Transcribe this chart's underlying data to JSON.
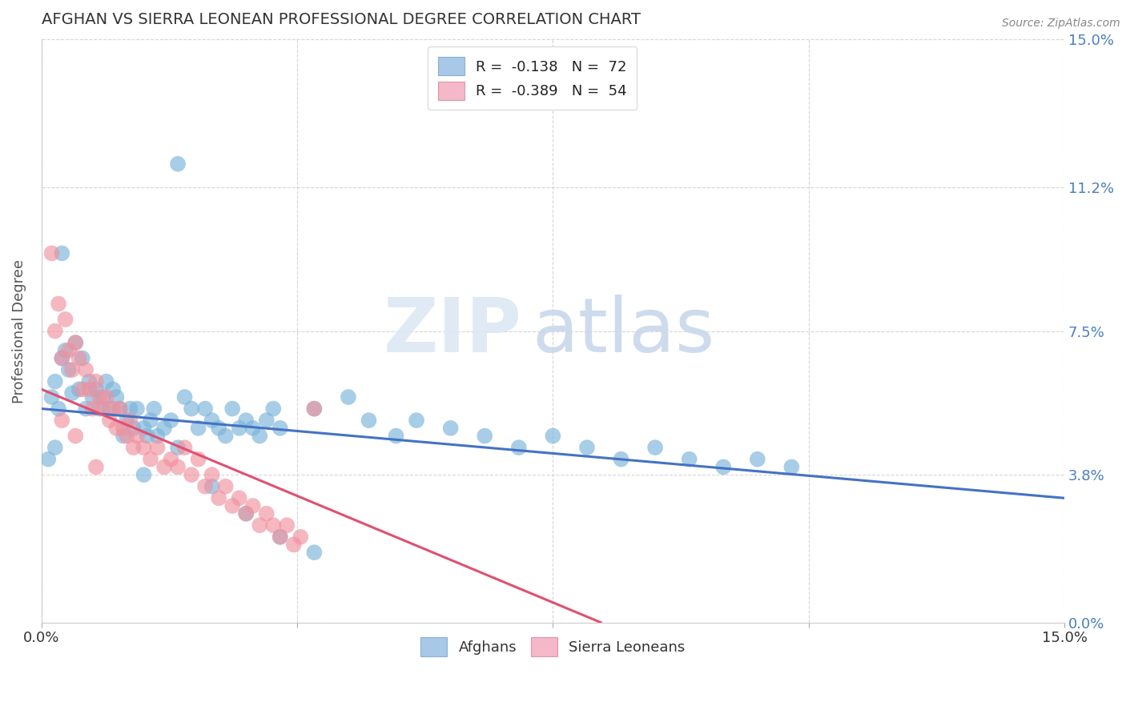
{
  "title": "AFGHAN VS SIERRA LEONEAN PROFESSIONAL DEGREE CORRELATION CHART",
  "source": "Source: ZipAtlas.com",
  "ylabel": "Professional Degree",
  "xlim": [
    0,
    15
  ],
  "ylim": [
    0,
    15
  ],
  "ytick_labels": [
    "0.0%",
    "3.8%",
    "7.5%",
    "11.2%",
    "15.0%"
  ],
  "ytick_values": [
    0,
    3.8,
    7.5,
    11.2,
    15.0
  ],
  "xtick_values": [
    0,
    3.75,
    7.5,
    11.25,
    15.0
  ],
  "watermark_zip": "ZIP",
  "watermark_atlas": "atlas",
  "afghan_color": "#7ab3d9",
  "sierraleone_color": "#f0919f",
  "afghan_line_color": "#4472c4",
  "sierraleone_line_color": "#e05070",
  "background_color": "#ffffff",
  "plot_bg_color": "#ffffff",
  "grid_color": "#cccccc",
  "afghan_scatter": [
    [
      0.15,
      5.8
    ],
    [
      0.2,
      6.2
    ],
    [
      0.25,
      5.5
    ],
    [
      0.3,
      6.8
    ],
    [
      0.35,
      7.0
    ],
    [
      0.4,
      6.5
    ],
    [
      0.45,
      5.9
    ],
    [
      0.5,
      7.2
    ],
    [
      0.55,
      6.0
    ],
    [
      0.6,
      6.8
    ],
    [
      0.65,
      5.5
    ],
    [
      0.7,
      6.2
    ],
    [
      0.75,
      5.8
    ],
    [
      0.8,
      6.0
    ],
    [
      0.85,
      5.5
    ],
    [
      0.9,
      5.8
    ],
    [
      0.95,
      6.2
    ],
    [
      1.0,
      5.5
    ],
    [
      1.05,
      6.0
    ],
    [
      1.1,
      5.8
    ],
    [
      1.15,
      5.5
    ],
    [
      1.2,
      4.8
    ],
    [
      1.25,
      5.2
    ],
    [
      1.3,
      5.5
    ],
    [
      1.35,
      5.0
    ],
    [
      1.4,
      5.5
    ],
    [
      1.5,
      5.0
    ],
    [
      1.55,
      4.8
    ],
    [
      1.6,
      5.2
    ],
    [
      1.65,
      5.5
    ],
    [
      1.7,
      4.8
    ],
    [
      1.8,
      5.0
    ],
    [
      1.9,
      5.2
    ],
    [
      2.0,
      4.5
    ],
    [
      2.1,
      5.8
    ],
    [
      2.2,
      5.5
    ],
    [
      2.3,
      5.0
    ],
    [
      2.4,
      5.5
    ],
    [
      2.5,
      5.2
    ],
    [
      2.6,
      5.0
    ],
    [
      2.7,
      4.8
    ],
    [
      2.8,
      5.5
    ],
    [
      2.9,
      5.0
    ],
    [
      3.0,
      5.2
    ],
    [
      3.1,
      5.0
    ],
    [
      3.2,
      4.8
    ],
    [
      3.3,
      5.2
    ],
    [
      3.4,
      5.5
    ],
    [
      3.5,
      5.0
    ],
    [
      4.0,
      5.5
    ],
    [
      4.5,
      5.8
    ],
    [
      4.8,
      5.2
    ],
    [
      5.2,
      4.8
    ],
    [
      5.5,
      5.2
    ],
    [
      6.0,
      5.0
    ],
    [
      6.5,
      4.8
    ],
    [
      7.0,
      4.5
    ],
    [
      7.5,
      4.8
    ],
    [
      8.0,
      4.5
    ],
    [
      8.5,
      4.2
    ],
    [
      9.0,
      4.5
    ],
    [
      9.5,
      4.2
    ],
    [
      10.0,
      4.0
    ],
    [
      10.5,
      4.2
    ],
    [
      11.0,
      4.0
    ],
    [
      2.0,
      11.8
    ],
    [
      0.3,
      9.5
    ],
    [
      0.1,
      4.2
    ],
    [
      0.2,
      4.5
    ],
    [
      1.5,
      3.8
    ],
    [
      2.5,
      3.5
    ],
    [
      3.0,
      2.8
    ],
    [
      3.5,
      2.2
    ],
    [
      4.0,
      1.8
    ]
  ],
  "sierraleone_scatter": [
    [
      0.15,
      9.5
    ],
    [
      0.2,
      7.5
    ],
    [
      0.25,
      8.2
    ],
    [
      0.3,
      6.8
    ],
    [
      0.35,
      7.8
    ],
    [
      0.4,
      7.0
    ],
    [
      0.45,
      6.5
    ],
    [
      0.5,
      7.2
    ],
    [
      0.55,
      6.8
    ],
    [
      0.6,
      6.0
    ],
    [
      0.65,
      6.5
    ],
    [
      0.7,
      6.0
    ],
    [
      0.75,
      5.5
    ],
    [
      0.8,
      6.2
    ],
    [
      0.85,
      5.8
    ],
    [
      0.9,
      5.5
    ],
    [
      0.95,
      5.8
    ],
    [
      1.0,
      5.2
    ],
    [
      1.05,
      5.5
    ],
    [
      1.1,
      5.0
    ],
    [
      1.15,
      5.5
    ],
    [
      1.2,
      5.0
    ],
    [
      1.25,
      4.8
    ],
    [
      1.3,
      5.2
    ],
    [
      1.35,
      4.5
    ],
    [
      1.4,
      4.8
    ],
    [
      1.5,
      4.5
    ],
    [
      1.6,
      4.2
    ],
    [
      1.7,
      4.5
    ],
    [
      1.8,
      4.0
    ],
    [
      1.9,
      4.2
    ],
    [
      2.0,
      4.0
    ],
    [
      2.1,
      4.5
    ],
    [
      2.2,
      3.8
    ],
    [
      2.3,
      4.2
    ],
    [
      2.4,
      3.5
    ],
    [
      2.5,
      3.8
    ],
    [
      2.6,
      3.2
    ],
    [
      2.7,
      3.5
    ],
    [
      2.8,
      3.0
    ],
    [
      2.9,
      3.2
    ],
    [
      3.0,
      2.8
    ],
    [
      3.1,
      3.0
    ],
    [
      3.2,
      2.5
    ],
    [
      3.3,
      2.8
    ],
    [
      3.4,
      2.5
    ],
    [
      3.5,
      2.2
    ],
    [
      3.6,
      2.5
    ],
    [
      3.7,
      2.0
    ],
    [
      3.8,
      2.2
    ],
    [
      4.0,
      5.5
    ],
    [
      0.3,
      5.2
    ],
    [
      0.5,
      4.8
    ],
    [
      0.8,
      4.0
    ]
  ],
  "afghan_regression": {
    "x_start": 0,
    "y_start": 5.5,
    "x_end": 15,
    "y_end": 3.2
  },
  "sierraleone_regression": {
    "x_start": 0,
    "y_start": 6.0,
    "x_end": 8.2,
    "y_end": 0.0
  }
}
